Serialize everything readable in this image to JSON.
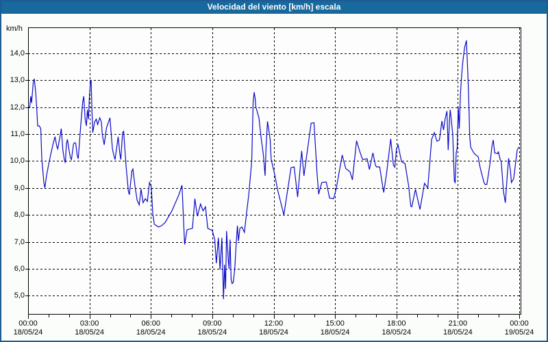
{
  "window": {
    "title": "Velocidad del viento [km/h] escala"
  },
  "colors": {
    "titlebar_bg": "#17699e",
    "titlebar_border": "#0c4e74",
    "frame_border": "#1d5a96",
    "page_bg": "#fbfdfb",
    "plot_bg": "#fdfdfd",
    "grid": "#000000",
    "axis": "#000000",
    "line": "#0808c8",
    "text": "#000000"
  },
  "y_axis": {
    "unit_label": "km/h",
    "ticks": [
      {
        "label": "14,0",
        "value": 14
      },
      {
        "label": "13,0",
        "value": 13
      },
      {
        "label": "12,0",
        "value": 12
      },
      {
        "label": "11,0",
        "value": 11
      },
      {
        "label": "10,0",
        "value": 10
      },
      {
        "label": "9,0",
        "value": 9
      },
      {
        "label": "8,0",
        "value": 8
      },
      {
        "label": "7,0",
        "value": 7
      },
      {
        "label": "6,0",
        "value": 6
      },
      {
        "label": "5,0",
        "value": 5
      }
    ]
  },
  "x_axis": {
    "ticks": [
      {
        "hour": 0,
        "time": "00:00",
        "date": "18/05/24"
      },
      {
        "hour": 3,
        "time": "03:00",
        "date": "18/05/24"
      },
      {
        "hour": 6,
        "time": "06:00",
        "date": "18/05/24"
      },
      {
        "hour": 9,
        "time": "09:00",
        "date": "18/05/24"
      },
      {
        "hour": 12,
        "time": "12:00",
        "date": "18/05/24"
      },
      {
        "hour": 15,
        "time": "15:00",
        "date": "18/05/24"
      },
      {
        "hour": 18,
        "time": "18:00",
        "date": "18/05/24"
      },
      {
        "hour": 21,
        "time": "21:00",
        "date": "18/05/24"
      },
      {
        "hour": 24,
        "time": "00:00",
        "date": "19/05/24"
      }
    ],
    "minor_tick_every_hours": 1
  },
  "chart_data": {
    "type": "line",
    "title": "Velocidad del viento [km/h] escala",
    "xlabel": "",
    "ylabel": "km/h",
    "x_unit": "hours from 00:00 18/05/24",
    "xlim": [
      0,
      24
    ],
    "ylim": [
      5,
      14
    ],
    "grid": true,
    "legend_position": "none",
    "series": [
      {
        "name": "Velocidad del viento [km/h]",
        "color": "#0808c8",
        "points": [
          [
            0,
            12
          ],
          [
            0.08,
            12
          ],
          [
            0.13,
            12.4
          ],
          [
            0.17,
            12.15
          ],
          [
            0.25,
            12.9
          ],
          [
            0.3,
            13.05
          ],
          [
            0.37,
            12.55
          ],
          [
            0.42,
            12
          ],
          [
            0.47,
            11.3
          ],
          [
            0.55,
            11.3
          ],
          [
            0.62,
            11.2
          ],
          [
            0.67,
            10.1
          ],
          [
            0.77,
            9.2
          ],
          [
            0.82,
            9
          ],
          [
            0.9,
            9.45
          ],
          [
            1,
            9.85
          ],
          [
            1.12,
            10.3
          ],
          [
            1.23,
            10.65
          ],
          [
            1.32,
            10.9
          ],
          [
            1.4,
            10.55
          ],
          [
            1.45,
            10.45
          ],
          [
            1.57,
            10.95
          ],
          [
            1.62,
            11.2
          ],
          [
            1.7,
            10.4
          ],
          [
            1.77,
            10.05
          ],
          [
            1.82,
            9.93
          ],
          [
            1.87,
            10.63
          ],
          [
            1.92,
            10.8
          ],
          [
            2,
            10.4
          ],
          [
            2.07,
            10.12
          ],
          [
            2.12,
            10.05
          ],
          [
            2.22,
            10.63
          ],
          [
            2.28,
            10.68
          ],
          [
            2.33,
            10.65
          ],
          [
            2.4,
            10.2
          ],
          [
            2.45,
            10.08
          ],
          [
            2.57,
            11.3
          ],
          [
            2.67,
            12.2
          ],
          [
            2.72,
            12.4
          ],
          [
            2.78,
            11.6
          ],
          [
            2.85,
            11.3
          ],
          [
            2.9,
            11.9
          ],
          [
            2.95,
            11.55
          ],
          [
            3,
            12.4
          ],
          [
            3.05,
            12.95
          ],
          [
            3.08,
            13
          ],
          [
            3.12,
            11.9
          ],
          [
            3.16,
            11.05
          ],
          [
            3.25,
            11.45
          ],
          [
            3.33,
            11.55
          ],
          [
            3.4,
            11.35
          ],
          [
            3.5,
            11.6
          ],
          [
            3.58,
            11.45
          ],
          [
            3.63,
            10.97
          ],
          [
            3.72,
            10.6
          ],
          [
            3.83,
            11.22
          ],
          [
            4,
            11.6
          ],
          [
            4.12,
            10.45
          ],
          [
            4.2,
            10.18
          ],
          [
            4.25,
            10.05
          ],
          [
            4.4,
            10.9
          ],
          [
            4.48,
            10.3
          ],
          [
            4.53,
            10.05
          ],
          [
            4.62,
            11.05
          ],
          [
            4.67,
            11.1
          ],
          [
            4.78,
            9.88
          ],
          [
            4.9,
            8.87
          ],
          [
            4.95,
            8.75
          ],
          [
            5.07,
            9.63
          ],
          [
            5.12,
            9.7
          ],
          [
            5.23,
            9.04
          ],
          [
            5.33,
            8.54
          ],
          [
            5.43,
            8.37
          ],
          [
            5.52,
            8.96
          ],
          [
            5.62,
            8.45
          ],
          [
            5.73,
            8.6
          ],
          [
            5.83,
            8.5
          ],
          [
            5.93,
            9.2
          ],
          [
            6.02,
            9.05
          ],
          [
            6.1,
            8
          ],
          [
            6.17,
            7.65
          ],
          [
            6.37,
            7.55
          ],
          [
            6.53,
            7.6
          ],
          [
            6.7,
            7.72
          ],
          [
            7.03,
            8.15
          ],
          [
            7.37,
            8.75
          ],
          [
            7.52,
            9.1
          ],
          [
            7.65,
            6.9
          ],
          [
            7.77,
            7.45
          ],
          [
            8.03,
            7.5
          ],
          [
            8.15,
            8.6
          ],
          [
            8.27,
            7.95
          ],
          [
            8.43,
            8.4
          ],
          [
            8.55,
            8.15
          ],
          [
            8.67,
            8.3
          ],
          [
            8.78,
            7.5
          ],
          [
            8.92,
            7.45
          ],
          [
            9,
            7.42
          ],
          [
            9.12,
            7.08
          ],
          [
            9.2,
            6.2
          ],
          [
            9.3,
            7.15
          ],
          [
            9.38,
            5.97
          ],
          [
            9.47,
            7.15
          ],
          [
            9.55,
            4.87
          ],
          [
            9.6,
            6.15
          ],
          [
            9.65,
            5.25
          ],
          [
            9.7,
            7.4
          ],
          [
            9.78,
            6.35
          ],
          [
            9.82,
            6
          ],
          [
            9.87,
            7.08
          ],
          [
            9.92,
            5.6
          ],
          [
            9.97,
            5.45
          ],
          [
            10.03,
            5.5
          ],
          [
            10.1,
            6
          ],
          [
            10.18,
            7.05
          ],
          [
            10.23,
            7.6
          ],
          [
            10.28,
            7.03
          ],
          [
            10.35,
            7.5
          ],
          [
            10.45,
            7.55
          ],
          [
            10.57,
            7.35
          ],
          [
            10.68,
            8.1
          ],
          [
            10.78,
            8.73
          ],
          [
            10.93,
            10
          ],
          [
            11,
            12.2
          ],
          [
            11.05,
            12.55
          ],
          [
            11.1,
            12.3
          ],
          [
            11.13,
            12
          ],
          [
            11.17,
            11.9
          ],
          [
            11.28,
            11.6
          ],
          [
            11.38,
            10.9
          ],
          [
            11.5,
            10.2
          ],
          [
            11.58,
            9.45
          ],
          [
            11.63,
            10.5
          ],
          [
            11.7,
            11.47
          ],
          [
            11.83,
            10.8
          ],
          [
            11.88,
            10.05
          ],
          [
            12.05,
            9.5
          ],
          [
            12.2,
            8.9
          ],
          [
            12.5,
            8
          ],
          [
            12.85,
            9.75
          ],
          [
            13,
            9.78
          ],
          [
            13.17,
            8.66
          ],
          [
            13.37,
            10.37
          ],
          [
            13.48,
            9.45
          ],
          [
            13.83,
            11.4
          ],
          [
            13.97,
            11.42
          ],
          [
            14.12,
            9.55
          ],
          [
            14.2,
            8.77
          ],
          [
            14.35,
            9.2
          ],
          [
            14.57,
            9.22
          ],
          [
            14.73,
            8.62
          ],
          [
            14.93,
            8.6
          ],
          [
            15.05,
            8.94
          ],
          [
            15.35,
            10.22
          ],
          [
            15.52,
            9.72
          ],
          [
            15.73,
            9.6
          ],
          [
            15.85,
            9.3
          ],
          [
            16.05,
            10.75
          ],
          [
            16.23,
            10.3
          ],
          [
            16.35,
            10.05
          ],
          [
            16.57,
            10.08
          ],
          [
            16.68,
            9.68
          ],
          [
            16.85,
            10.3
          ],
          [
            16.97,
            9.85
          ],
          [
            17.02,
            9.78
          ],
          [
            17.18,
            9.78
          ],
          [
            17.3,
            9.2
          ],
          [
            17.38,
            8.83
          ],
          [
            17.52,
            9.55
          ],
          [
            17.72,
            10.82
          ],
          [
            17.85,
            9.85
          ],
          [
            17.92,
            9.77
          ],
          [
            18,
            10.45
          ],
          [
            18.08,
            10.6
          ],
          [
            18.25,
            9.97
          ],
          [
            18.42,
            9.9
          ],
          [
            18.6,
            9.05
          ],
          [
            18.7,
            8.32
          ],
          [
            18.75,
            8.3
          ],
          [
            18.93,
            8.95
          ],
          [
            19.15,
            8.2
          ],
          [
            19.37,
            9.17
          ],
          [
            19.53,
            9
          ],
          [
            19.72,
            10.8
          ],
          [
            19.85,
            11.05
          ],
          [
            19.98,
            10.73
          ],
          [
            20.1,
            10.78
          ],
          [
            20.22,
            11.48
          ],
          [
            20.3,
            11.15
          ],
          [
            20.38,
            11.57
          ],
          [
            20.47,
            11.85
          ],
          [
            20.53,
            10.4
          ],
          [
            20.6,
            11.6
          ],
          [
            20.63,
            11.9
          ],
          [
            20.75,
            11
          ],
          [
            20.83,
            9.25
          ],
          [
            20.87,
            9.2
          ],
          [
            20.92,
            10.3
          ],
          [
            20.97,
            10.5
          ],
          [
            21.02,
            12
          ],
          [
            21.07,
            11.2
          ],
          [
            21.12,
            12.4
          ],
          [
            21.17,
            13
          ],
          [
            21.22,
            13.5
          ],
          [
            21.28,
            13.9
          ],
          [
            21.33,
            14.2
          ],
          [
            21.42,
            14.47
          ],
          [
            21.48,
            13.4
          ],
          [
            21.52,
            12.6
          ],
          [
            21.55,
            11.8
          ],
          [
            21.58,
            10.9
          ],
          [
            21.63,
            10.5
          ],
          [
            21.67,
            10.45
          ],
          [
            21.78,
            10.3
          ],
          [
            21.88,
            10.22
          ],
          [
            22,
            10.15
          ],
          [
            22.05,
            9.9
          ],
          [
            22.13,
            9.63
          ],
          [
            22.28,
            9.2
          ],
          [
            22.33,
            9.13
          ],
          [
            22.42,
            9.13
          ],
          [
            22.57,
            9.9
          ],
          [
            22.67,
            10.57
          ],
          [
            22.73,
            10.78
          ],
          [
            22.8,
            10.3
          ],
          [
            22.95,
            10.27
          ],
          [
            22.98,
            10.35
          ],
          [
            23.07,
            10.05
          ],
          [
            23.12,
            9.97
          ],
          [
            23.23,
            8.87
          ],
          [
            23.32,
            8.45
          ],
          [
            23.43,
            9.63
          ],
          [
            23.48,
            10.1
          ],
          [
            23.57,
            9.63
          ],
          [
            23.62,
            9.2
          ],
          [
            23.73,
            9.34
          ],
          [
            23.9,
            10.4
          ],
          [
            23.98,
            10.52
          ]
        ]
      }
    ]
  }
}
